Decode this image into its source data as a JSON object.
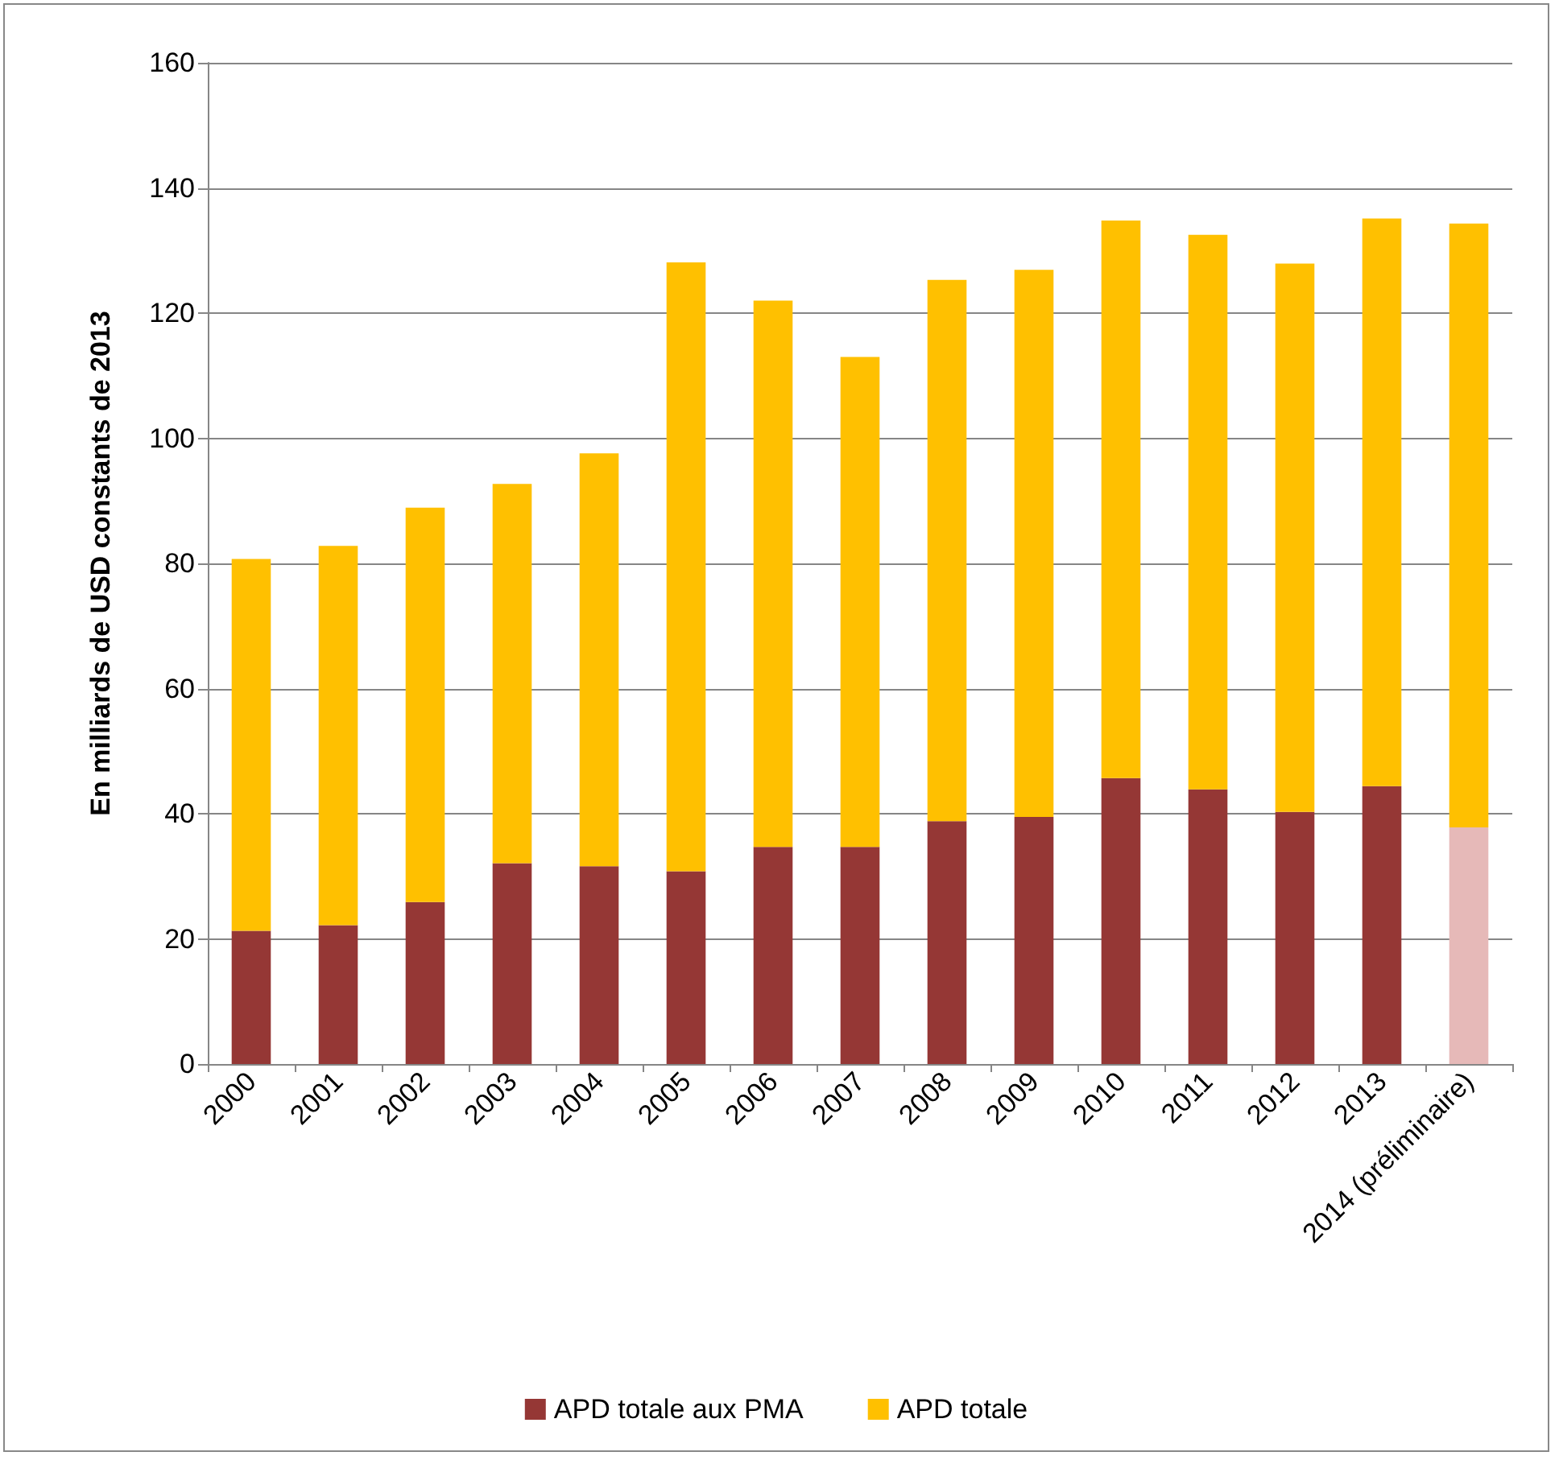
{
  "chart_data": {
    "type": "bar",
    "ylabel": "En milliards de USD constants de 2013",
    "categories": [
      "2000",
      "2001",
      "2002",
      "2003",
      "2004",
      "2005",
      "2006",
      "2007",
      "2008",
      "2009",
      "2010",
      "2011",
      "2012",
      "2013",
      "2014 (préliminaire)"
    ],
    "stacked": true,
    "series": [
      {
        "name": "APD totale aux PMA",
        "color": "#953735",
        "colors": [
          "#953735",
          "#953735",
          "#953735",
          "#953735",
          "#953735",
          "#953735",
          "#953735",
          "#953735",
          "#953735",
          "#953735",
          "#953735",
          "#953735",
          "#953735",
          "#953735",
          "#e6b9b8"
        ],
        "values": [
          21.3,
          22.2,
          25.9,
          32.1,
          31.6,
          30.8,
          34.7,
          34.7,
          38.8,
          39.5,
          45.7,
          43.9,
          40.3,
          44.4,
          37.8
        ]
      },
      {
        "name": "APD totale",
        "color": "#ffc000",
        "values": [
          59.4,
          60.6,
          63.0,
          60.6,
          66.0,
          97.3,
          87.3,
          78.3,
          86.5,
          87.4,
          89.1,
          88.6,
          87.6,
          90.7,
          96.5
        ]
      }
    ],
    "ylim": [
      0,
      160
    ],
    "yticks": [
      0,
      20,
      40,
      60,
      80,
      100,
      120,
      140,
      160
    ],
    "grid": "y",
    "legend": "bottom"
  }
}
